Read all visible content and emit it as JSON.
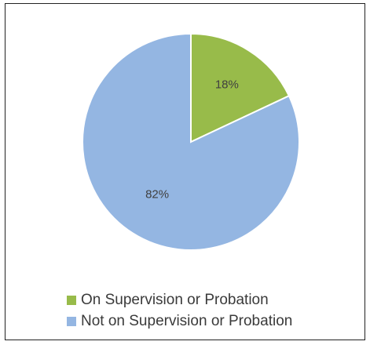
{
  "chart_data": {
    "type": "pie",
    "title": "",
    "slices": [
      {
        "label": "On Supervision or Probation",
        "value": 18,
        "data_label": "18%",
        "color": "#98bb4a"
      },
      {
        "label": "Not on Supervision or Probation",
        "value": 82,
        "data_label": "82%",
        "color": "#94b6e2"
      }
    ],
    "start_angle": "12 o'clock",
    "direction": "clockwise",
    "slice_border_color": "#ffffff",
    "data_label_color": "#404040",
    "legend_position": "bottom-left"
  }
}
